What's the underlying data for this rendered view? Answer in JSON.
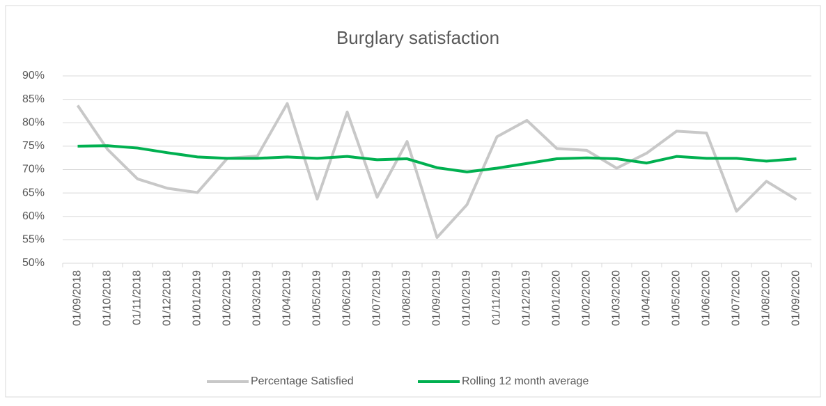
{
  "chart_data": {
    "type": "line",
    "title": "Burglary satisfaction",
    "categories": [
      "01/09/2018",
      "01/10/2018",
      "01/11/2018",
      "01/12/2018",
      "01/01/2019",
      "01/02/2019",
      "01/03/2019",
      "01/04/2019",
      "01/05/2019",
      "01/06/2019",
      "01/07/2019",
      "01/08/2019",
      "01/09/2019",
      "01/10/2019",
      "01/11/2019",
      "01/12/2019",
      "01/01/2020",
      "01/02/2020",
      "01/03/2020",
      "01/04/2020",
      "01/05/2020",
      "01/06/2020",
      "01/07/2020",
      "01/08/2020",
      "01/09/2020"
    ],
    "series": [
      {
        "name": "Percentage Satisfied",
        "color": "#c8c8c8",
        "values": [
          83.7,
          74.3,
          68,
          66,
          65.1,
          72.4,
          72.9,
          84.1,
          63.7,
          82.3,
          64.1,
          76,
          55.5,
          62.5,
          77,
          80.5,
          74.5,
          74.1,
          70.3,
          73.5,
          78.2,
          77.8,
          61.1,
          67.5,
          63.6
        ]
      },
      {
        "name": "Rolling 12 month average",
        "color": "#00b050",
        "values": [
          75,
          75.1,
          74.6,
          73.6,
          72.7,
          72.4,
          72.4,
          72.7,
          72.4,
          72.8,
          72.1,
          72.3,
          70.4,
          69.5,
          70.3,
          71.3,
          72.3,
          72.5,
          72.3,
          71.4,
          72.8,
          72.4,
          72.4,
          71.8,
          72.3
        ]
      }
    ],
    "ylim": [
      50,
      90
    ],
    "yticks": [
      {
        "value": 50,
        "label": "50%"
      },
      {
        "value": 55,
        "label": "55%"
      },
      {
        "value": 60,
        "label": "60%"
      },
      {
        "value": 65,
        "label": "65%"
      },
      {
        "value": 70,
        "label": "70%"
      },
      {
        "value": 75,
        "label": "75%"
      },
      {
        "value": 80,
        "label": "80%"
      },
      {
        "value": 85,
        "label": "85%"
      },
      {
        "value": 90,
        "label": "90%"
      }
    ],
    "grid": true,
    "legend": "bottom"
  }
}
